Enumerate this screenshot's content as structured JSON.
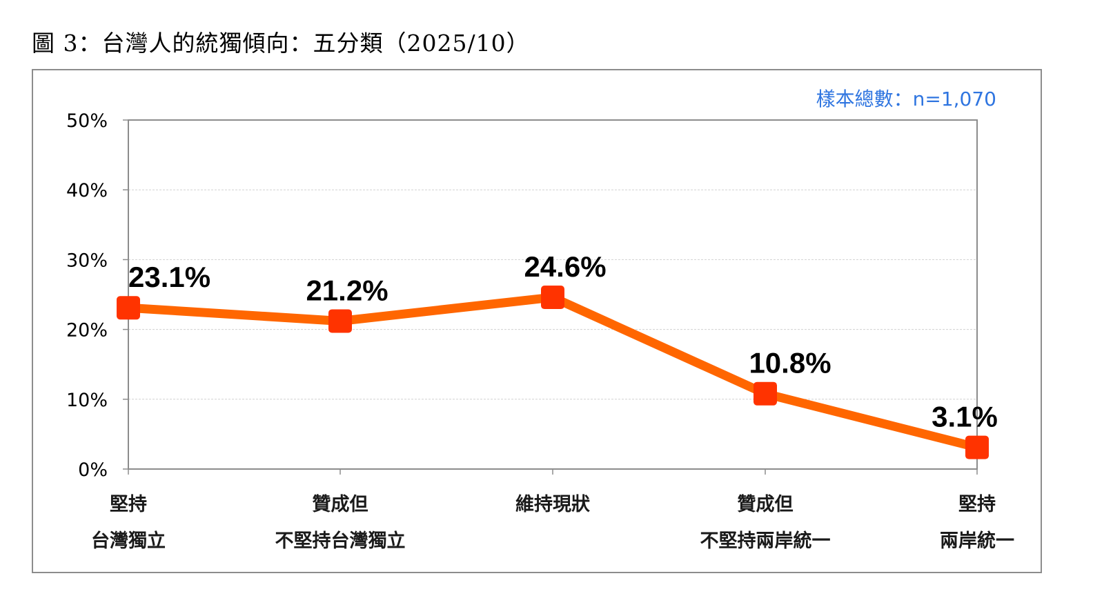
{
  "figure_title": "圖 3：台灣人的統獨傾向：五分類（2025/10）",
  "sample_note": "樣本總數：n=1,070",
  "colors": {
    "line": "#ff6600",
    "marker": "#ff3300",
    "grid": "#d0d0d0",
    "axis": "#8c8c8c",
    "sample_note": "#2f75e0"
  },
  "chart_data": {
    "type": "line",
    "title": "圖 3：台灣人的統獨傾向：五分類（2025/10）",
    "categories": [
      [
        "堅持",
        "台灣獨立"
      ],
      [
        "贊成但",
        "不堅持台灣獨立"
      ],
      [
        "維持現狀"
      ],
      [
        "贊成但",
        "不堅持兩岸統一"
      ],
      [
        "堅持",
        "兩岸統一"
      ]
    ],
    "series": [
      {
        "values": [
          23.1,
          21.2,
          24.6,
          10.8,
          3.1
        ],
        "labels": [
          "23.1%",
          "21.2%",
          "24.6%",
          "10.8%",
          "3.1%"
        ]
      }
    ],
    "y_ticks": [
      "0%",
      "10%",
      "20%",
      "30%",
      "40%",
      "50%"
    ],
    "ylim": [
      0,
      50
    ],
    "grid": true,
    "legend": false
  }
}
